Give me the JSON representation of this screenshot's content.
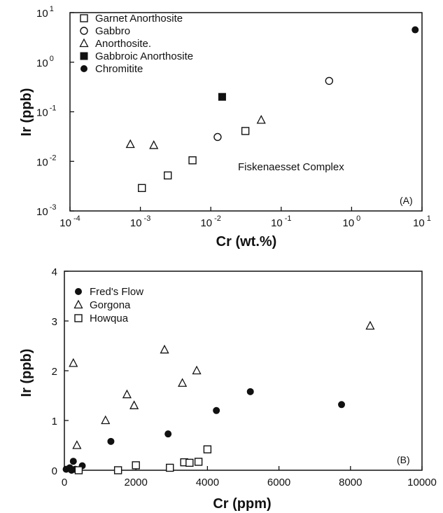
{
  "chart_data": [
    {
      "type": "scatter",
      "panel_label": "(A)",
      "annotation": "Fiskenaesset Complex",
      "xlabel": "Cr (wt.%)",
      "ylabel": "Ir (ppb)",
      "x_scale": "log",
      "y_scale": "log",
      "xlim": [
        0.0001,
        10
      ],
      "ylim": [
        0.001,
        10
      ],
      "x_ticks": [
        {
          "value": 0.0001,
          "base": "10",
          "exp": "-4"
        },
        {
          "value": 0.001,
          "base": "10",
          "exp": "-3"
        },
        {
          "value": 0.01,
          "base": "10",
          "exp": "-2"
        },
        {
          "value": 0.1,
          "base": "10",
          "exp": "-1"
        },
        {
          "value": 1,
          "base": "10",
          "exp": "0"
        },
        {
          "value": 10,
          "base": "10",
          "exp": "1"
        }
      ],
      "y_ticks": [
        {
          "value": 0.001,
          "base": "10",
          "exp": "-3"
        },
        {
          "value": 0.01,
          "base": "10",
          "exp": "-2"
        },
        {
          "value": 0.1,
          "base": "10",
          "exp": "-1"
        },
        {
          "value": 1,
          "base": "10",
          "exp": "0"
        },
        {
          "value": 10,
          "base": "10",
          "exp": "1"
        }
      ],
      "grid": false,
      "legend_position": "top-left",
      "series": [
        {
          "name": "Garnet Anorthosite",
          "marker": "square-open",
          "x": [
            0.00105,
            0.00245,
            0.0055,
            0.031
          ],
          "y": [
            0.0029,
            0.0052,
            0.0105,
            0.041
          ]
        },
        {
          "name": "Gabbro",
          "marker": "circle-open",
          "x": [
            0.0125,
            0.48
          ],
          "y": [
            0.031,
            0.42
          ]
        },
        {
          "name": "Anorthosite.",
          "marker": "triangle-open",
          "x": [
            0.00072,
            0.00155,
            0.052
          ],
          "y": [
            0.022,
            0.021,
            0.068
          ]
        },
        {
          "name": "Gabbroic Anorthosite",
          "marker": "square-filled",
          "x": [
            0.0145
          ],
          "y": [
            0.2
          ]
        },
        {
          "name": "Chromitite",
          "marker": "circle-filled",
          "x": [
            8.0
          ],
          "y": [
            4.5
          ]
        }
      ]
    },
    {
      "type": "scatter",
      "panel_label": "(B)",
      "xlabel": "Cr (ppm)",
      "ylabel": "Ir (ppb)",
      "x_scale": "linear",
      "y_scale": "linear",
      "xlim": [
        0,
        10000
      ],
      "ylim": [
        0,
        4
      ],
      "x_ticks": [
        "0",
        "2000",
        "4000",
        "6000",
        "8000",
        "10000"
      ],
      "y_ticks": [
        "0",
        "1",
        "2",
        "3",
        "4"
      ],
      "grid": false,
      "legend_position": "top-left",
      "series": [
        {
          "name": "Fred's Flow",
          "marker": "circle-filled",
          "x": [
            50,
            150,
            200,
            250,
            300,
            350,
            500,
            1300,
            2900,
            4250,
            5200,
            7750
          ],
          "y": [
            0.02,
            0.05,
            0.0,
            0.18,
            0.02,
            0.0,
            0.09,
            0.58,
            0.73,
            1.2,
            1.58,
            1.32
          ]
        },
        {
          "name": "Gorgona",
          "marker": "triangle-open",
          "x": [
            250,
            350,
            1150,
            1750,
            1950,
            2800,
            3300,
            3700,
            8550
          ],
          "y": [
            2.15,
            0.5,
            1.0,
            1.52,
            1.3,
            2.42,
            1.75,
            2.0,
            2.9
          ]
        },
        {
          "name": "Howqua",
          "marker": "square-open",
          "x": [
            400,
            1500,
            2000,
            2950,
            3350,
            3500,
            3750,
            4000
          ],
          "y": [
            0.0,
            0.0,
            0.1,
            0.05,
            0.16,
            0.15,
            0.17,
            0.42
          ]
        }
      ]
    }
  ]
}
